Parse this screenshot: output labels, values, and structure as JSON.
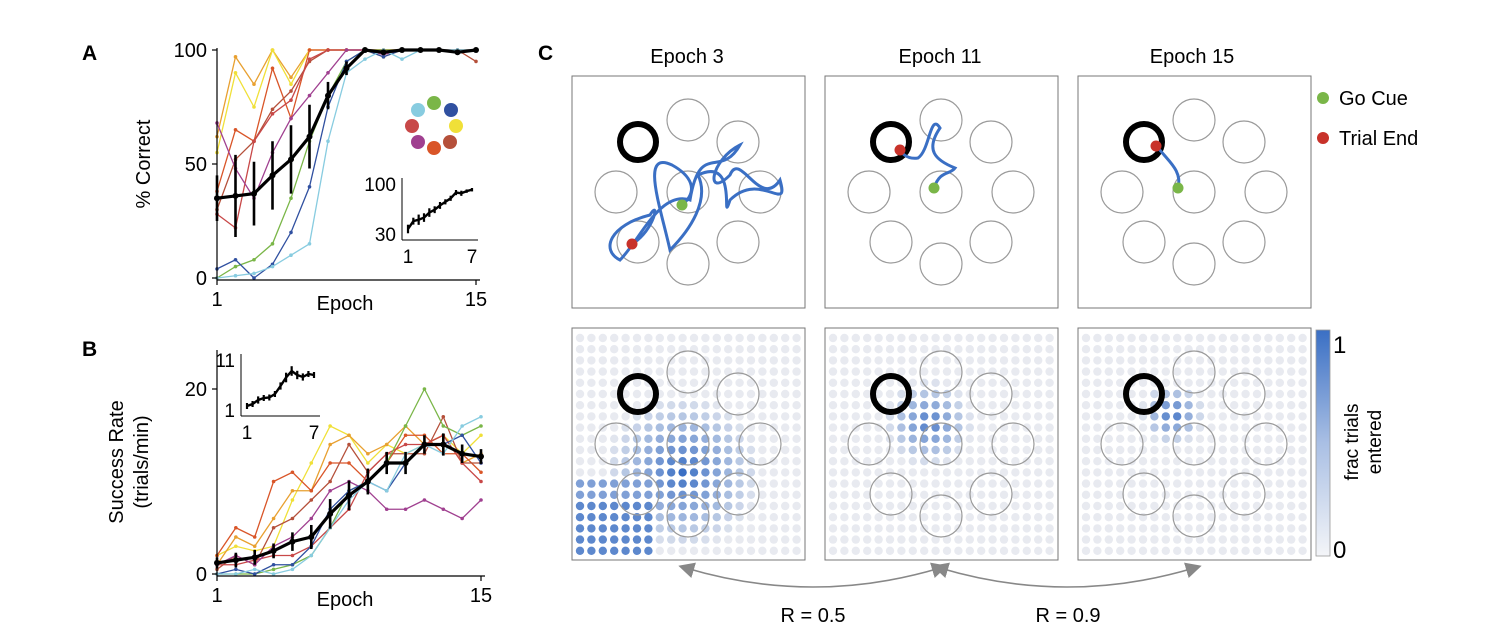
{
  "panel_labels": {
    "a": "A",
    "b": "B",
    "c": "C"
  },
  "colors": {
    "mean": "#000000",
    "trajectory": "#3a6fc4",
    "go_cue": "#7ab648",
    "trial_end": "#c8322a",
    "target_ring": "#000000",
    "empty_target": "#9a9a9a",
    "heat_high": "#3a6fc4",
    "heat_low": "#e8eaf0"
  },
  "chart_data": [
    {
      "id": "A",
      "type": "line",
      "xlabel": "Epoch",
      "ylabel": "% Correct",
      "x_ticks": [
        "1",
        "15"
      ],
      "y_ticks": [
        "0",
        "50",
        "100"
      ],
      "xlim": [
        1,
        15
      ],
      "ylim": [
        0,
        100
      ],
      "mean": {
        "x": [
          1,
          2,
          3,
          4,
          5,
          6,
          7,
          8,
          9,
          10,
          11,
          12,
          13,
          14,
          15
        ],
        "y": [
          35,
          36,
          37,
          45,
          52,
          62,
          80,
          92,
          100,
          99,
          100,
          100,
          100,
          99,
          100
        ],
        "err": [
          10,
          18,
          14,
          15,
          15,
          14,
          6,
          3,
          1,
          1,
          1,
          1,
          1,
          1,
          1
        ]
      },
      "series": [
        {
          "color": "#e8a030",
          "values": [
            62,
            97,
            85,
            100,
            88,
            100,
            100,
            100,
            100,
            97,
            100,
            100,
            100,
            100,
            100
          ]
        },
        {
          "color": "#f0e038",
          "values": [
            55,
            90,
            75,
            100,
            85,
            100,
            100,
            100,
            100,
            100,
            100,
            100,
            100,
            100,
            100
          ]
        },
        {
          "color": "#d95528",
          "values": [
            38,
            65,
            60,
            92,
            70,
            100,
            100,
            100,
            100,
            100,
            100,
            100,
            100,
            100,
            100
          ]
        },
        {
          "color": "#b5503a",
          "values": [
            30,
            52,
            60,
            74,
            82,
            95,
            100,
            100,
            100,
            100,
            100,
            100,
            100,
            100,
            95
          ]
        },
        {
          "color": "#c84848",
          "values": [
            28,
            22,
            60,
            72,
            78,
            96,
            100,
            100,
            100,
            100,
            100,
            100,
            100,
            100,
            100
          ]
        },
        {
          "color": "#a04090",
          "values": [
            68,
            48,
            35,
            55,
            70,
            80,
            90,
            100,
            100,
            98,
            100,
            100,
            100,
            100,
            100
          ]
        },
        {
          "color": "#7ab648",
          "values": [
            0,
            5,
            8,
            15,
            35,
            60,
            80,
            95,
            100,
            100,
            100,
            100,
            100,
            100,
            100
          ]
        },
        {
          "color": "#3050a0",
          "values": [
            4,
            8,
            0,
            6,
            20,
            40,
            75,
            95,
            100,
            97,
            100,
            100,
            100,
            100,
            100
          ]
        },
        {
          "color": "#88cce0",
          "values": [
            0,
            1,
            2,
            5,
            10,
            15,
            60,
            90,
            96,
            100,
            96,
            100,
            100,
            100,
            100
          ]
        }
      ],
      "inset": {
        "x_ticks": [
          "1",
          "7"
        ],
        "y_ticks": [
          "30",
          "100"
        ],
        "xlim": [
          1,
          7
        ],
        "ylim": [
          30,
          100
        ],
        "x": [
          1,
          1.5,
          2,
          2.5,
          3,
          3.5,
          4,
          4.5,
          5,
          5.5,
          6,
          6.5,
          7
        ],
        "y": [
          37,
          48,
          50,
          53,
          60,
          64,
          70,
          75,
          80,
          88,
          87,
          90,
          92
        ],
        "err": [
          5,
          4,
          6,
          5,
          5,
          4,
          4,
          3,
          3,
          3,
          3,
          2,
          2
        ]
      }
    },
    {
      "id": "B",
      "type": "line",
      "xlabel": "Epoch",
      "ylabel": "Success Rate",
      "ylabel2": "(trials/min)",
      "x_ticks": [
        "1",
        "15"
      ],
      "y_ticks": [
        "0",
        "20"
      ],
      "xlim": [
        1,
        15
      ],
      "ylim": [
        0,
        24
      ],
      "mean": {
        "x": [
          1,
          2,
          3,
          4,
          5,
          6,
          7,
          8,
          9,
          10,
          11,
          12,
          13,
          14,
          15
        ],
        "y": [
          1.2,
          1.5,
          1.8,
          2.5,
          3.5,
          4,
          6.5,
          8.5,
          10,
          12,
          12,
          14,
          14,
          13,
          12.7
        ],
        "err": [
          0.6,
          0.8,
          0.8,
          0.8,
          1,
          1.3,
          1.6,
          1.6,
          1.4,
          1.2,
          1.2,
          1,
          1.2,
          1,
          0.8
        ]
      },
      "series": [
        {
          "color": "#f0e038",
          "values": [
            2,
            3,
            2.5,
            3,
            8,
            12,
            16,
            15,
            12,
            14,
            13,
            14,
            15,
            13,
            15
          ]
        },
        {
          "color": "#e8a030",
          "values": [
            1,
            4,
            3,
            6,
            9,
            9,
            14,
            15,
            13,
            14,
            16,
            14,
            15,
            12,
            13
          ]
        },
        {
          "color": "#d95528",
          "values": [
            2,
            5,
            4,
            10,
            11,
            9,
            12,
            12,
            10,
            12,
            15,
            15,
            13,
            13,
            11
          ]
        },
        {
          "color": "#b5503a",
          "values": [
            0.5,
            2,
            1,
            5,
            6,
            8,
            10,
            14,
            11,
            13,
            13,
            13,
            17,
            12,
            12
          ]
        },
        {
          "color": "#c84848",
          "values": [
            1,
            1,
            1.5,
            2,
            2,
            3,
            5,
            7,
            11,
            13,
            14,
            14,
            15,
            12,
            10
          ]
        },
        {
          "color": "#a04090",
          "values": [
            1,
            2,
            1,
            3,
            4,
            6,
            9,
            10,
            9,
            7,
            7,
            8,
            7,
            6,
            8
          ]
        },
        {
          "color": "#7ab648",
          "values": [
            0,
            0,
            0,
            0.5,
            1,
            2,
            5,
            9,
            10,
            12,
            16,
            20,
            16,
            15,
            16
          ]
        },
        {
          "color": "#3050a0",
          "values": [
            0,
            0.5,
            0,
            1,
            1,
            3,
            7,
            9,
            10,
            9,
            12,
            14,
            14,
            15,
            12
          ]
        },
        {
          "color": "#88cce0",
          "values": [
            0,
            0,
            0.5,
            0,
            0.5,
            2,
            5,
            8,
            10,
            9,
            13,
            14,
            13,
            16,
            17
          ]
        }
      ],
      "inset": {
        "x_ticks": [
          "1",
          "7"
        ],
        "y_ticks": [
          "1",
          "11"
        ],
        "xlim": [
          1,
          7
        ],
        "ylim": [
          1,
          11
        ],
        "x": [
          1,
          1.5,
          2,
          2.5,
          3,
          3.5,
          4,
          4.5,
          5,
          5.5,
          6,
          6.5,
          7
        ],
        "y": [
          1.8,
          2.2,
          3,
          3.4,
          3.5,
          4.2,
          5.8,
          7.5,
          8.8,
          8,
          7.6,
          8.2,
          8
        ],
        "err": [
          0.5,
          0.5,
          0.6,
          0.5,
          0.5,
          0.5,
          0.6,
          0.8,
          0.8,
          0.7,
          0.6,
          0.5,
          0.5
        ]
      }
    }
  ],
  "panel_c": {
    "columns": [
      {
        "title": "Epoch 3"
      },
      {
        "title": "Epoch 11"
      },
      {
        "title": "Epoch 15"
      }
    ],
    "legend": [
      {
        "label": "Go Cue",
        "color": "#7ab648"
      },
      {
        "label": "Trial End",
        "color": "#c8322a"
      }
    ],
    "colorbar": {
      "max_label": "1",
      "min_label": "0",
      "title_line1": "frac trials",
      "title_line2": "entered"
    },
    "correlations": [
      {
        "label": "R = 0.5"
      },
      {
        "label": "R = 0.9"
      }
    ]
  }
}
